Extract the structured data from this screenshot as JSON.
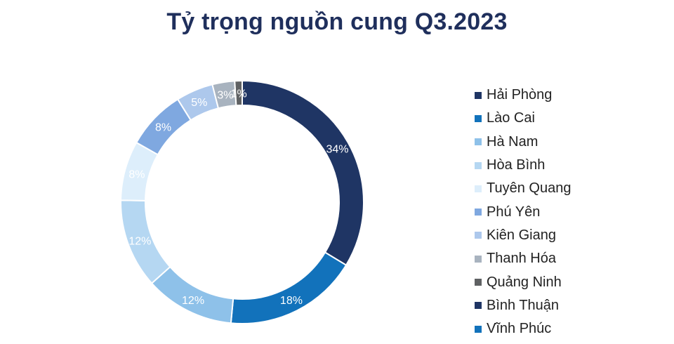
{
  "chart_data": {
    "type": "donut",
    "title": "Tỷ trọng nguồn cung Q3.2023",
    "categories": [
      "Hải Phòng",
      "Lào Cai",
      "Hà Nam",
      "Hòa Bình",
      "Tuyên Quang",
      "Phú Yên",
      "Kiên Giang",
      "Thanh Hóa",
      "Quảng Ninh",
      "Bình Thuận",
      "Vĩnh Phúc"
    ],
    "values": [
      34,
      18,
      12,
      12,
      8,
      8,
      5,
      3,
      1,
      0,
      0
    ],
    "data_labels": [
      "34%",
      "18%",
      "12%",
      "12%",
      "8%",
      "8%",
      "5%",
      "3%",
      "1%",
      "",
      ""
    ],
    "colors": [
      "#1f3564",
      "#1272bb",
      "#8ec1e9",
      "#b5d7f2",
      "#ddeefb",
      "#7fa8e0",
      "#adc8ec",
      "#a8b3bf",
      "#5f6163",
      "#1f3564",
      "#1272bb"
    ],
    "label_colors": [
      "#ffffff",
      "#ffffff",
      "#ffffff",
      "#ffffff",
      "#ffffff",
      "#ffffff",
      "#ffffff",
      "#ffffff",
      "#ffffff",
      "#ffffff",
      "#ffffff"
    ],
    "legend_position": "right"
  }
}
